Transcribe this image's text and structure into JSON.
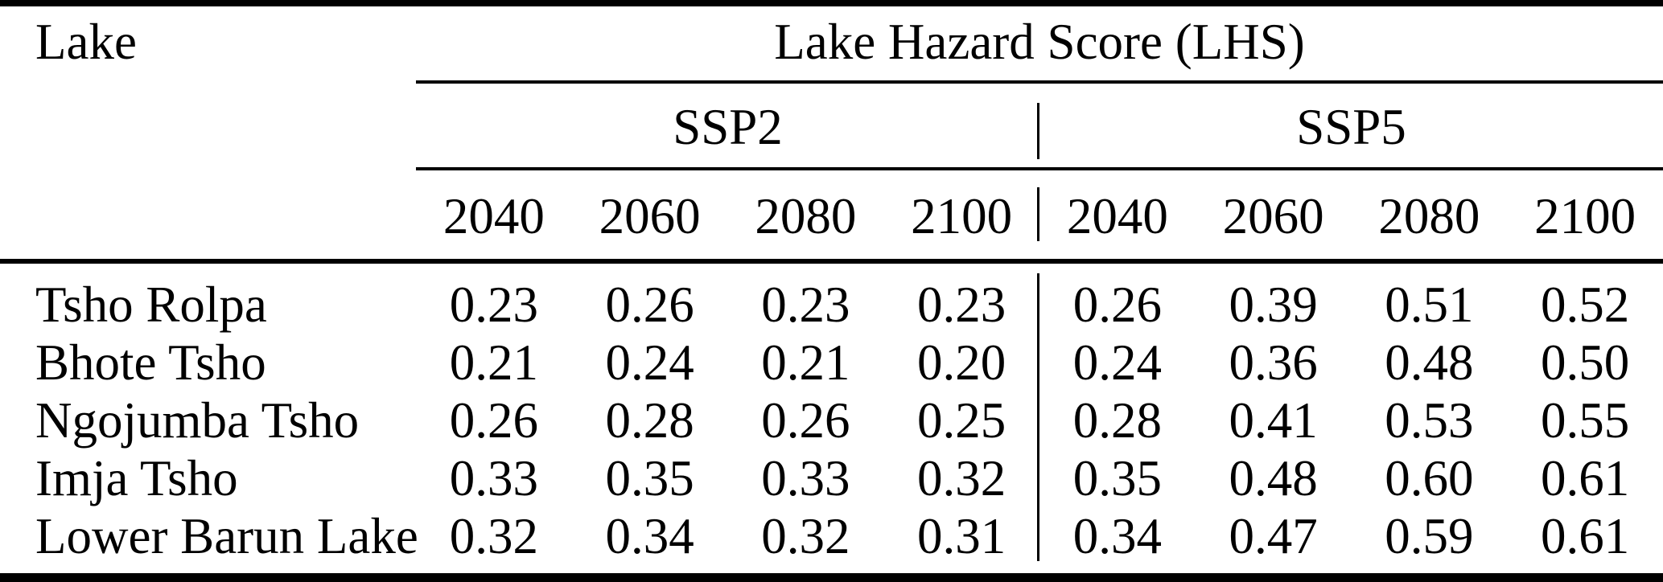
{
  "table": {
    "col1_header": "Lake",
    "group_header": "Lake Hazard Score (LHS)",
    "scenarios": [
      {
        "label": "SSP2",
        "years": [
          "2040",
          "2060",
          "2080",
          "2100"
        ]
      },
      {
        "label": "SSP5",
        "years": [
          "2040",
          "2060",
          "2080",
          "2100"
        ]
      }
    ],
    "rows": [
      {
        "lake": "Tsho Rolpa",
        "ssp2": [
          "0.23",
          "0.26",
          "0.23",
          "0.23"
        ],
        "ssp5": [
          "0.26",
          "0.39",
          "0.51",
          "0.52"
        ]
      },
      {
        "lake": "Bhote Tsho",
        "ssp2": [
          "0.21",
          "0.24",
          "0.21",
          "0.20"
        ],
        "ssp5": [
          "0.24",
          "0.36",
          "0.48",
          "0.50"
        ]
      },
      {
        "lake": "Ngojumba Tsho",
        "ssp2": [
          "0.26",
          "0.28",
          "0.26",
          "0.25"
        ],
        "ssp5": [
          "0.28",
          "0.41",
          "0.53",
          "0.55"
        ]
      },
      {
        "lake": "Imja Tsho",
        "ssp2": [
          "0.33",
          "0.35",
          "0.33",
          "0.32"
        ],
        "ssp5": [
          "0.35",
          "0.48",
          "0.60",
          "0.61"
        ]
      },
      {
        "lake": "Lower Barun Lake",
        "ssp2": [
          "0.32",
          "0.34",
          "0.32",
          "0.31"
        ],
        "ssp5": [
          "0.34",
          "0.47",
          "0.59",
          "0.61"
        ]
      }
    ]
  },
  "colors": {
    "text": "#000000",
    "background": "#ffffff",
    "rule": "#000000"
  }
}
